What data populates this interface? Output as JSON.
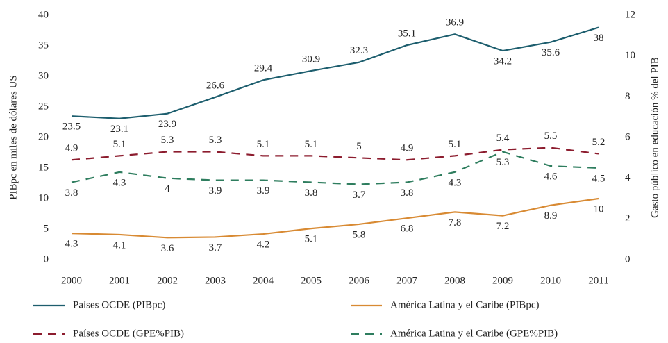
{
  "chart_data": {
    "type": "line",
    "categories": [
      "2000",
      "2001",
      "2002",
      "2003",
      "2004",
      "2005",
      "2006",
      "2007",
      "2008",
      "2009",
      "2010",
      "2011"
    ],
    "y_label": "PIBpc en miles de dólares US",
    "y2_label": "Gasto público en educación % del PIB",
    "ylim": [
      0,
      40
    ],
    "yticks": [
      0,
      5,
      10,
      15,
      20,
      25,
      30,
      35,
      40
    ],
    "y2lim": [
      0,
      12
    ],
    "y2ticks": [
      0,
      2,
      4,
      6,
      8,
      10,
      12
    ],
    "grid": false,
    "series": [
      {
        "name": "Países OCDE (PIBpc)",
        "color": "#1d5e6e",
        "dashed": false,
        "values": [
          23.5,
          23.1,
          23.9,
          26.6,
          29.4,
          30.9,
          32.3,
          35.1,
          36.9,
          34.2,
          35.6,
          38
        ]
      },
      {
        "name": "América Latina y el Caribe (PIBpc)",
        "color": "#d88a33",
        "dashed": false,
        "values": [
          4.3,
          4.1,
          3.6,
          3.7,
          4.2,
          5.1,
          5.8,
          6.8,
          7.8,
          7.2,
          8.9,
          10
        ]
      },
      {
        "name": "Países OCDE (GPE%PIB)",
        "color": "#8c1c2e",
        "dashed": true,
        "axis": "y2",
        "values": [
          4.9,
          5.1,
          5.3,
          5.3,
          5.1,
          5.1,
          5,
          4.9,
          5.1,
          5.4,
          5.5,
          5.2
        ]
      },
      {
        "name": "América Latina y el Caribe (GPE%PIB)",
        "color": "#2e7d5e",
        "dashed": true,
        "axis": "y2",
        "values": [
          3.8,
          4.3,
          4,
          3.9,
          3.9,
          3.8,
          3.7,
          3.8,
          4.3,
          5.3,
          4.6,
          4.5
        ]
      }
    ]
  }
}
